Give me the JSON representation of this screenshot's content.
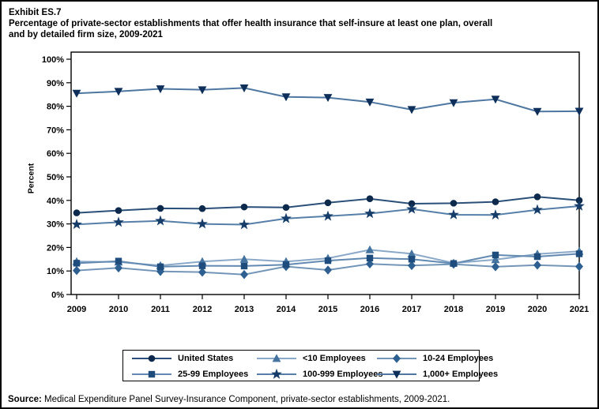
{
  "header": {
    "exhibit_label": "Exhibit ES.7",
    "title_line1": "Percentage of private-sector establishments that offer health insurance that self-insure at least one plan, overall",
    "title_line2": "and by detailed firm size, 2009-2021"
  },
  "source": {
    "label": "Source:",
    "text": " Medical Expenditure Panel Survey-Insurance Component, private-sector establishments, 2009-2021."
  },
  "chart_data": {
    "type": "line",
    "title": "Percentage of private-sector establishments that offer health insurance that self-insure at least one plan, overall and by detailed firm size, 2009-2021",
    "x": [
      2009,
      2010,
      2011,
      2012,
      2013,
      2014,
      2015,
      2016,
      2017,
      2018,
      2019,
      2020,
      2021
    ],
    "xlabel": "",
    "ylabel": "Percent",
    "ylim": [
      0,
      100
    ],
    "ytick_step": 10,
    "ytick_suffix": "%",
    "grid": false,
    "legend_position": "bottom",
    "series": [
      {
        "name": "United States",
        "marker": "circle",
        "line_color": "#2a4f78",
        "marker_color": "#0d2a4d",
        "values": [
          34.7,
          35.7,
          36.6,
          36.5,
          37.2,
          37.0,
          39.0,
          40.7,
          38.6,
          38.8,
          39.4,
          41.5,
          40.0
        ]
      },
      {
        "name": "<10 Employees",
        "marker": "triangle-up",
        "line_color": "#8aa9c8",
        "marker_color": "#44749f",
        "values": [
          14.0,
          13.8,
          12.3,
          14.0,
          15.0,
          14.0,
          15.4,
          19.0,
          17.3,
          13.4,
          14.8,
          17.2,
          18.4
        ]
      },
      {
        "name": "10-24 Employees",
        "marker": "diamond",
        "line_color": "#7396b8",
        "marker_color": "#2d6091",
        "values": [
          10.2,
          11.3,
          9.8,
          9.5,
          8.5,
          11.9,
          10.4,
          13.0,
          12.3,
          12.9,
          11.8,
          12.5,
          11.9
        ]
      },
      {
        "name": "25-99 Employees",
        "marker": "square",
        "line_color": "#6189b1",
        "marker_color": "#1e4c7c",
        "values": [
          13.3,
          14.2,
          11.8,
          12.2,
          12.1,
          12.7,
          14.4,
          15.5,
          15.0,
          13.2,
          16.8,
          16.1,
          17.3
        ]
      },
      {
        "name": "100-999 Employees",
        "marker": "star",
        "line_color": "#557fa8",
        "marker_color": "#163d69",
        "values": [
          29.8,
          30.7,
          31.3,
          30.0,
          29.7,
          32.3,
          33.3,
          34.4,
          36.3,
          33.9,
          33.8,
          36.0,
          37.6
        ]
      },
      {
        "name": "1,000+ Employees",
        "marker": "triangle-down",
        "line_color": "#4d77a1",
        "marker_color": "#0e2f5a",
        "values": [
          85.5,
          86.3,
          87.4,
          87.0,
          87.8,
          84.0,
          83.7,
          81.8,
          78.6,
          81.5,
          83.0,
          77.8,
          77.9
        ]
      }
    ]
  }
}
